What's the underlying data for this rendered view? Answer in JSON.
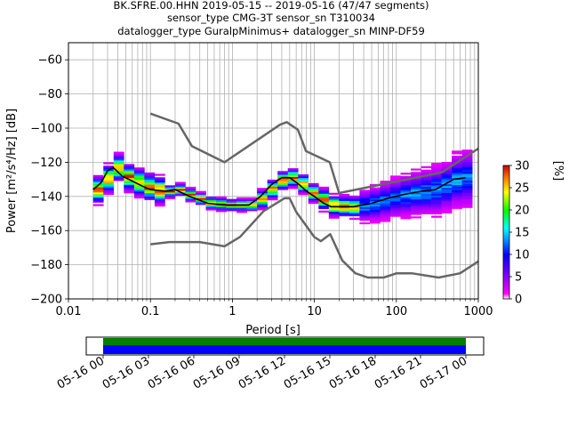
{
  "title": {
    "line1": "BK.SFRE.00.HHN   2019-05-15 -- 2019-05-16  (47/47 segments)",
    "line2": "sensor_type CMG-3T sensor_sn T310034",
    "line3": "datalogger_type GuralpMinimus+ datalogger_sn MINP-DF59"
  },
  "colorbar": {
    "label": "[%]",
    "ticks": [
      "0",
      "5",
      "10",
      "15",
      "20",
      "25",
      "30"
    ],
    "range": [
      0,
      30
    ]
  },
  "timeline": {
    "ticks": [
      "05-16 00",
      "05-16 03",
      "05-16 06",
      "05-16 09",
      "05-16 12",
      "05-16 15",
      "05-16 18",
      "05-16 21",
      "05-17 00"
    ],
    "coverage": "05-16 00 to 05-17 00",
    "colors": {
      "upper": "#008000",
      "lower": "#0000ff"
    }
  },
  "chart_data": {
    "type": "heatmap",
    "xlabel": "Period [s]",
    "ylabel": "Power [m²/s⁴/Hz] [dB]",
    "xscale": "log",
    "xlim": [
      0.01,
      1000
    ],
    "ylim": [
      -200,
      -50
    ],
    "xtick_labels": [
      "0.01",
      "0.1",
      "1",
      "10",
      "100",
      "1000"
    ],
    "ytick_labels": [
      "−60",
      "−80",
      "−100",
      "−120",
      "−140",
      "−160",
      "−180",
      "−200"
    ],
    "grid": true,
    "colormap": "pqlx (magenta-blue-cyan-green-yellow-red)",
    "noise_model_high": {
      "x": [
        0.1,
        0.22,
        0.32,
        0.8,
        3.8,
        4.6,
        6.3,
        7.9,
        15.4,
        20,
        354.8,
        1000
      ],
      "y": [
        -91.5,
        -97.4,
        -110.5,
        -120,
        -98,
        -96.5,
        -101,
        -113.5,
        -120,
        -138,
        -126,
        -112
      ]
    },
    "noise_model_low": {
      "x": [
        0.1,
        0.17,
        0.4,
        0.8,
        1.24,
        2.4,
        4.3,
        5.0,
        6.0,
        10.0,
        12.0,
        15.6,
        21.9,
        31.6,
        45,
        70,
        101,
        154,
        328,
        600,
        1000
      ],
      "y": [
        -168,
        -166.7,
        -166.7,
        -169.2,
        -163.7,
        -148.6,
        -141.1,
        -141.1,
        -149,
        -163.8,
        -166.2,
        -162.1,
        -177.5,
        -185,
        -187.5,
        -187.5,
        -185,
        -185,
        -187.5,
        -185,
        -178
      ]
    },
    "mean_curve": {
      "x": [
        0.02,
        0.025,
        0.03,
        0.035,
        0.045,
        0.06,
        0.08,
        0.1,
        0.15,
        0.2,
        0.3,
        0.5,
        0.8,
        1.2,
        1.6,
        2.2,
        3.0,
        4.0,
        5.0,
        6.5,
        8.0,
        10,
        13,
        16,
        20,
        30,
        50,
        80,
        120,
        200,
        300,
        500,
        700
      ],
      "y": [
        -136,
        -132,
        -125,
        -123,
        -128,
        -131,
        -134,
        -136,
        -137,
        -136,
        -140,
        -144,
        -145,
        -145,
        -145,
        -140,
        -133,
        -129,
        -129,
        -133,
        -137,
        -140,
        -144,
        -146,
        -146,
        -146,
        -144,
        -141,
        -139,
        -137,
        -136,
        -130,
        -129
      ]
    }
  }
}
